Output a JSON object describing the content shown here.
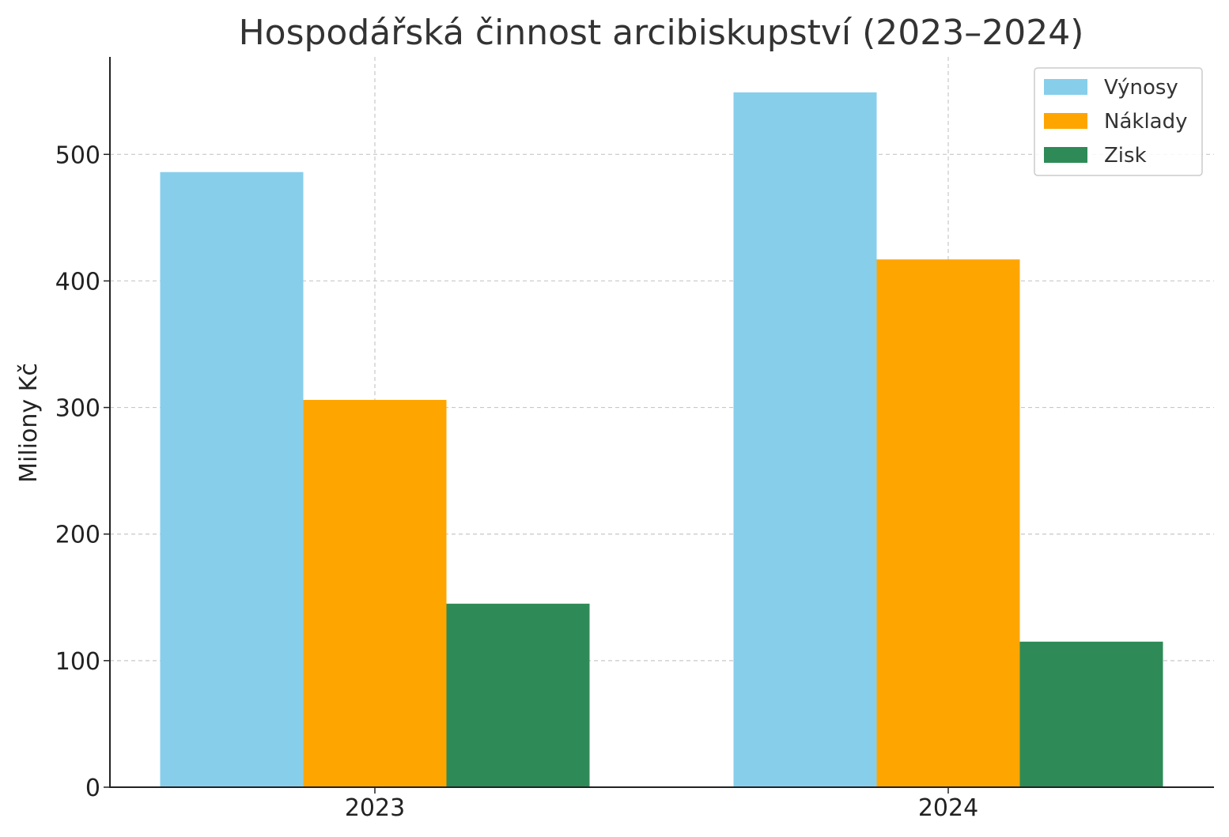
{
  "chart_data": {
    "type": "bar",
    "title": "Hospodářská činnost arcibiskupství (2023–2024)",
    "xlabel": "",
    "ylabel": "Miliony Kč",
    "categories": [
      "2023",
      "2024"
    ],
    "series": [
      {
        "name": "Výnosy",
        "color": "#87CEEB",
        "values": [
          486,
          549
        ]
      },
      {
        "name": "Náklady",
        "color": "#FFA500",
        "values": [
          306,
          417
        ]
      },
      {
        "name": "Zisk",
        "color": "#2E8B57",
        "values": [
          145,
          115
        ]
      }
    ],
    "ylim": [
      0,
      577
    ],
    "yticks": [
      0,
      100,
      200,
      300,
      400,
      500
    ],
    "grid": true,
    "legend_position": "top-right"
  }
}
